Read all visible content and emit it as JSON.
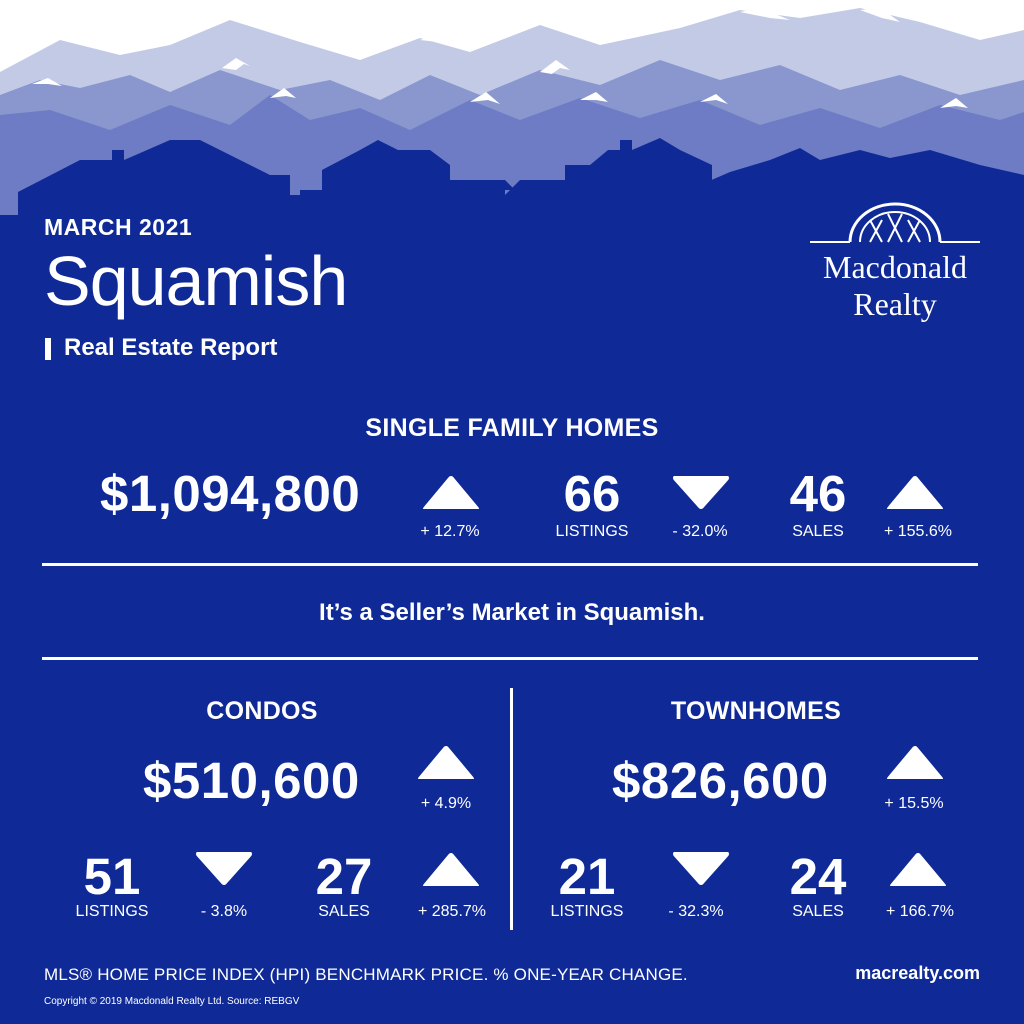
{
  "header": {
    "month": "MARCH 2021",
    "city": "Squamish",
    "subtitle": "Real Estate Report"
  },
  "logo": {
    "line1": "Macdonald",
    "line2": "Realty"
  },
  "single_family": {
    "heading": "SINGLE FAMILY HOMES",
    "price": "$1,094,800",
    "price_change": "+ 12.7%",
    "price_trend": "up",
    "listings": "66",
    "listings_label": "LISTINGS",
    "listings_change": "- 32.0%",
    "listings_trend": "down",
    "sales": "46",
    "sales_label": "SALES",
    "sales_change": "+ 155.6%",
    "sales_trend": "up"
  },
  "tagline": "It’s a Seller’s Market in Squamish.",
  "condos": {
    "heading": "CONDOS",
    "price": "$510,600",
    "price_change": "+ 4.9%",
    "price_trend": "up",
    "listings": "51",
    "listings_label": "LISTINGS",
    "listings_change": "- 3.8%",
    "listings_trend": "down",
    "sales": "27",
    "sales_label": "SALES",
    "sales_change": "+ 285.7%",
    "sales_trend": "up"
  },
  "townhomes": {
    "heading": "TOWNHOMES",
    "price": "$826,600",
    "price_change": "+ 15.5%",
    "price_trend": "up",
    "listings": "21",
    "listings_label": "LISTINGS",
    "listings_change": "- 32.3%",
    "listings_trend": "down",
    "sales": "24",
    "sales_label": "SALES",
    "sales_change": "+ 166.7%",
    "sales_trend": "up"
  },
  "footer": {
    "note": "MLS® HOME PRICE INDEX (HPI) BENCHMARK PRICE.  % ONE-YEAR CHANGE.",
    "website": "macrealty.com",
    "copyright": "Copyright © 2019 Macdonald Realty Ltd.  Source: REBGV"
  },
  "colors": {
    "background": "#0f2a96",
    "text": "#ffffff",
    "mountain_light": "#c3cae6",
    "mountain_mid": "#8a97cf",
    "mountain_dark": "#6d7cc4"
  }
}
